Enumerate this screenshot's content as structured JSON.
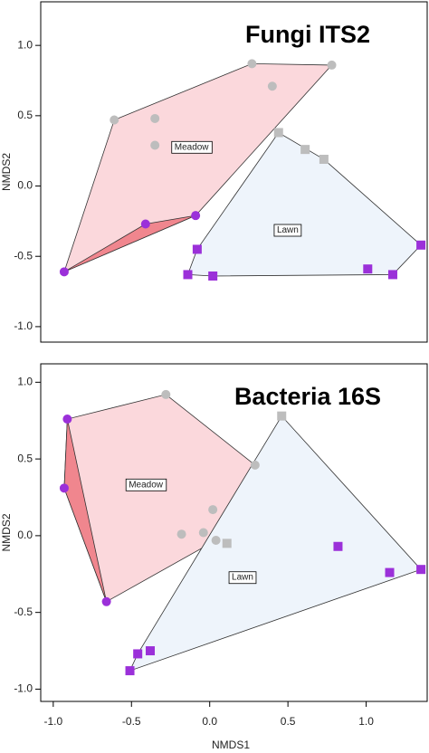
{
  "chart_data": [
    {
      "type": "scatter",
      "title": "Fungi ITS2",
      "ylabel": "NMDS2",
      "xlim": [
        -1.08,
        1.39
      ],
      "ylim": [
        -1.11,
        1.31
      ],
      "yticks": [
        {
          "value": -1,
          "label": "-1.0"
        },
        {
          "value": -0.5,
          "label": "-0.5"
        },
        {
          "value": 0,
          "label": "0.0"
        },
        {
          "value": 0.5,
          "label": "0.5"
        },
        {
          "value": 1,
          "label": "1.0"
        }
      ],
      "groups": [
        {
          "name": "Meadow",
          "marker": "circle",
          "fill": "#fbd8dc",
          "subsets": [
            {
              "color": "#bdbdbd",
              "x": [
                -0.61,
                -0.35,
                -0.35,
                0.27,
                0.4,
                0.78
              ],
              "y": [
                0.47,
                0.48,
                0.29,
                0.87,
                0.71,
                0.86
              ]
            },
            {
              "color": "#9b30d9",
              "highlight": "#f0868e",
              "x": [
                -0.93,
                -0.41,
                -0.09
              ],
              "y": [
                -0.61,
                -0.27,
                -0.21
              ]
            }
          ]
        },
        {
          "name": "Lawn",
          "marker": "square",
          "fill": "#eef4fb",
          "subsets": [
            {
              "color": "#bdbdbd",
              "x": [
                0.44,
                0.61,
                0.73
              ],
              "y": [
                0.38,
                0.26,
                0.19
              ]
            },
            {
              "color": "#9b30d9",
              "x": [
                -0.08,
                -0.14,
                0.02,
                1.01,
                1.17,
                1.35
              ],
              "y": [
                -0.45,
                -0.63,
                -0.64,
                -0.59,
                -0.63,
                -0.42
              ]
            }
          ]
        }
      ]
    },
    {
      "type": "scatter",
      "title": "Bacteria 16S",
      "ylabel": "NMDS2",
      "xlabel": "NMDS1",
      "xlim": [
        -1.08,
        1.39
      ],
      "ylim": [
        -1.08,
        1.12
      ],
      "xticks": [
        {
          "value": -1,
          "label": "-1.0"
        },
        {
          "value": -0.5,
          "label": "-0.5"
        },
        {
          "value": 0,
          "label": "0.0"
        },
        {
          "value": 0.5,
          "label": "0.5"
        },
        {
          "value": 1,
          "label": "1.0"
        }
      ],
      "yticks": [
        {
          "value": -1,
          "label": "-1.0"
        },
        {
          "value": -0.5,
          "label": "-0.5"
        },
        {
          "value": 0,
          "label": "0.0"
        },
        {
          "value": 0.5,
          "label": "0.5"
        },
        {
          "value": 1,
          "label": "1.0"
        }
      ],
      "groups": [
        {
          "name": "Meadow",
          "marker": "circle",
          "fill": "#fbd8dc",
          "subsets": [
            {
              "color": "#bdbdbd",
              "x": [
                -0.28,
                0.29,
                0.02,
                -0.18,
                -0.04,
                0.04
              ],
              "y": [
                0.92,
                0.46,
                0.17,
                0.01,
                0.02,
                -0.03
              ]
            },
            {
              "color": "#9b30d9",
              "highlight": "#f0868e",
              "x": [
                -0.91,
                -0.93,
                -0.66
              ],
              "y": [
                0.76,
                0.31,
                -0.43
              ]
            }
          ]
        },
        {
          "name": "Lawn",
          "marker": "square",
          "fill": "#eef4fb",
          "subsets": [
            {
              "color": "#bdbdbd",
              "x": [
                0.46,
                0.11
              ],
              "y": [
                0.78,
                -0.05
              ]
            },
            {
              "color": "#9b30d9",
              "x": [
                0.82,
                1.15,
                1.35,
                -0.38,
                -0.46,
                -0.51
              ],
              "y": [
                -0.07,
                -0.24,
                -0.22,
                -0.75,
                -0.77,
                -0.88
              ]
            }
          ]
        }
      ]
    }
  ]
}
